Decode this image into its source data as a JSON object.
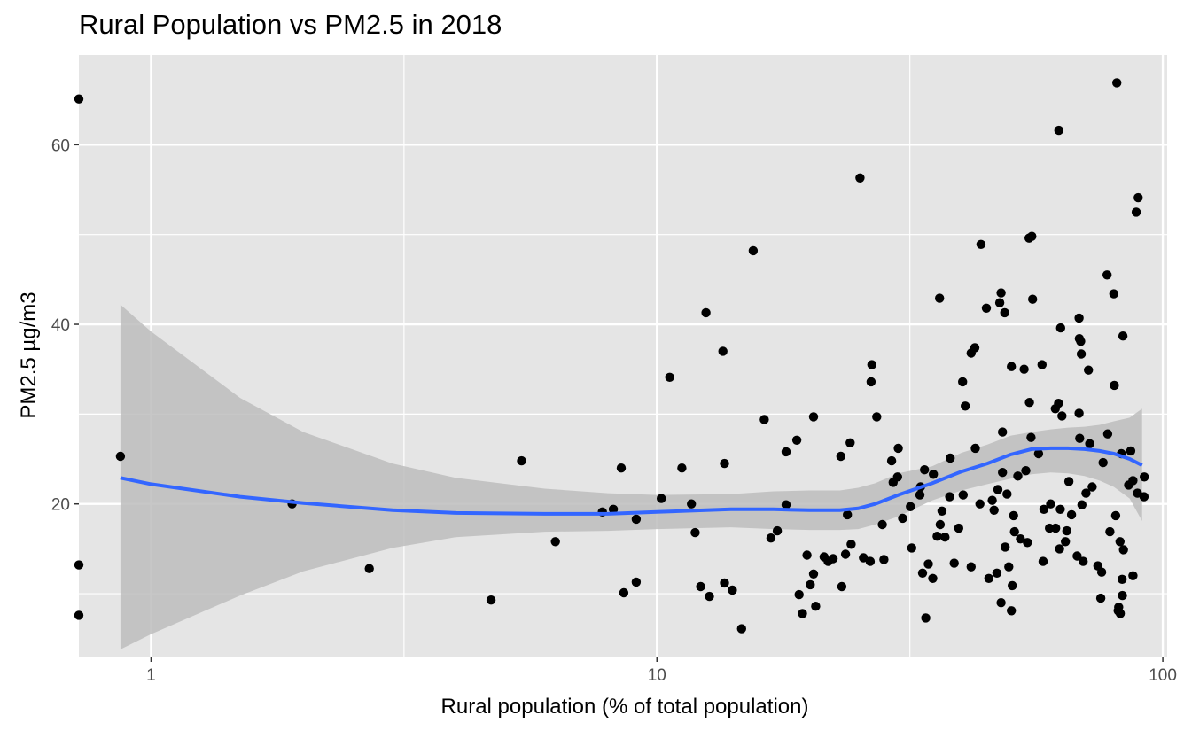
{
  "chart_data": {
    "type": "scatter",
    "title": "Rural Population vs PM2.5 in 2018",
    "xlabel": "Rural population (% of total population)",
    "ylabel": "PM2.5 µg/m3",
    "x_scale": "log10",
    "xlim": [
      0.72,
      102
    ],
    "ylim": [
      3,
      70
    ],
    "x_ticks": [
      1,
      10,
      100
    ],
    "x_tick_labels": [
      "1",
      "10",
      "100"
    ],
    "y_ticks": [
      20,
      40,
      60
    ],
    "y_tick_labels": [
      "20",
      "40",
      "60"
    ],
    "grid": true,
    "colors": {
      "points": "#000000",
      "smooth_line": "#3366FF",
      "ribbon": "#bdbdbd",
      "panel": "#e5e5e5",
      "grid": "#ffffff"
    },
    "points": [
      [
        0.72,
        65.1
      ],
      [
        0.72,
        13.2
      ],
      [
        0.72,
        7.6
      ],
      [
        0.87,
        25.3
      ],
      [
        1.9,
        20.0
      ],
      [
        2.7,
        12.8
      ],
      [
        4.7,
        9.3
      ],
      [
        5.4,
        24.8
      ],
      [
        6.3,
        15.8
      ],
      [
        7.8,
        19.1
      ],
      [
        8.2,
        19.4
      ],
      [
        8.5,
        24.0
      ],
      [
        8.6,
        10.1
      ],
      [
        9.1,
        11.3
      ],
      [
        9.1,
        18.3
      ],
      [
        10.2,
        20.6
      ],
      [
        10.6,
        34.1
      ],
      [
        11.2,
        24.0
      ],
      [
        11.7,
        20.0
      ],
      [
        11.9,
        16.8
      ],
      [
        12.2,
        10.8
      ],
      [
        12.5,
        41.3
      ],
      [
        12.7,
        9.7
      ],
      [
        13.5,
        37.0
      ],
      [
        13.6,
        24.5
      ],
      [
        13.6,
        11.2
      ],
      [
        14.1,
        10.4
      ],
      [
        14.7,
        6.1
      ],
      [
        15.5,
        48.2
      ],
      [
        16.3,
        29.4
      ],
      [
        16.8,
        16.2
      ],
      [
        17.3,
        17.0
      ],
      [
        18.0,
        19.9
      ],
      [
        18.0,
        25.8
      ],
      [
        18.9,
        27.1
      ],
      [
        19.1,
        9.9
      ],
      [
        19.4,
        7.8
      ],
      [
        19.8,
        14.3
      ],
      [
        20.1,
        11.0
      ],
      [
        20.4,
        12.2
      ],
      [
        20.6,
        8.6
      ],
      [
        20.4,
        29.7
      ],
      [
        21.4,
        14.1
      ],
      [
        21.8,
        13.6
      ],
      [
        22.3,
        13.9
      ],
      [
        23.1,
        25.3
      ],
      [
        23.2,
        10.8
      ],
      [
        23.6,
        14.4
      ],
      [
        23.8,
        18.8
      ],
      [
        24.1,
        26.8
      ],
      [
        24.2,
        15.5
      ],
      [
        25.2,
        56.3
      ],
      [
        25.6,
        14.0
      ],
      [
        26.4,
        13.6
      ],
      [
        26.6,
        35.5
      ],
      [
        26.5,
        33.6
      ],
      [
        27.2,
        29.7
      ],
      [
        27.9,
        17.7
      ],
      [
        28.1,
        13.8
      ],
      [
        29.1,
        24.8
      ],
      [
        29.3,
        22.4
      ],
      [
        29.9,
        23.0
      ],
      [
        30.0,
        26.2
      ],
      [
        30.6,
        18.4
      ],
      [
        31.7,
        19.7
      ],
      [
        31.9,
        15.1
      ],
      [
        33.1,
        21.0
      ],
      [
        33.2,
        21.9
      ],
      [
        33.5,
        12.3
      ],
      [
        33.8,
        23.8
      ],
      [
        34.0,
        7.3
      ],
      [
        34.4,
        13.3
      ],
      [
        35.1,
        11.7
      ],
      [
        35.2,
        23.3
      ],
      [
        35.8,
        16.4
      ],
      [
        36.2,
        42.9
      ],
      [
        36.3,
        17.7
      ],
      [
        36.6,
        19.2
      ],
      [
        37.1,
        16.3
      ],
      [
        37.9,
        20.8
      ],
      [
        38.0,
        25.1
      ],
      [
        38.7,
        13.4
      ],
      [
        39.5,
        17.3
      ],
      [
        40.2,
        33.6
      ],
      [
        40.3,
        21.0
      ],
      [
        40.7,
        30.9
      ],
      [
        41.8,
        36.8
      ],
      [
        41.8,
        13.0
      ],
      [
        42.5,
        37.4
      ],
      [
        42.6,
        26.2
      ],
      [
        43.5,
        20.0
      ],
      [
        43.7,
        48.9
      ],
      [
        44.8,
        41.8
      ],
      [
        45.3,
        11.7
      ],
      [
        46.0,
        20.4
      ],
      [
        46.4,
        19.3
      ],
      [
        47.0,
        12.3
      ],
      [
        47.2,
        21.6
      ],
      [
        47.6,
        42.4
      ],
      [
        47.9,
        43.5
      ],
      [
        47.9,
        9.0
      ],
      [
        48.2,
        28.0
      ],
      [
        48.2,
        23.5
      ],
      [
        48.7,
        41.3
      ],
      [
        48.8,
        15.2
      ],
      [
        49.2,
        21.1
      ],
      [
        49.6,
        13.0
      ],
      [
        50.2,
        35.3
      ],
      [
        50.2,
        8.1
      ],
      [
        50.4,
        10.9
      ],
      [
        50.7,
        18.7
      ],
      [
        50.9,
        16.9
      ],
      [
        51.7,
        23.1
      ],
      [
        52.3,
        16.1
      ],
      [
        53.2,
        35.0
      ],
      [
        53.6,
        23.7
      ],
      [
        54.0,
        15.7
      ],
      [
        54.4,
        49.6
      ],
      [
        54.5,
        31.3
      ],
      [
        54.9,
        27.4
      ],
      [
        55.1,
        49.8
      ],
      [
        55.3,
        42.8
      ],
      [
        56.8,
        25.6
      ],
      [
        57.7,
        35.5
      ],
      [
        58.0,
        13.6
      ],
      [
        58.2,
        19.4
      ],
      [
        59.7,
        17.3
      ],
      [
        60.0,
        20.0
      ],
      [
        61.3,
        30.6
      ],
      [
        61.4,
        17.3
      ],
      [
        62.2,
        31.2
      ],
      [
        62.3,
        61.6
      ],
      [
        62.5,
        15.0
      ],
      [
        62.7,
        19.4
      ],
      [
        62.8,
        39.6
      ],
      [
        63.2,
        29.8
      ],
      [
        64.2,
        15.8
      ],
      [
        64.6,
        17.0
      ],
      [
        65.2,
        22.5
      ],
      [
        66.0,
        18.8
      ],
      [
        67.7,
        14.2
      ],
      [
        68.3,
        30.1
      ],
      [
        68.3,
        40.7
      ],
      [
        68.4,
        38.4
      ],
      [
        68.5,
        27.3
      ],
      [
        68.8,
        38.1
      ],
      [
        69.0,
        36.7
      ],
      [
        69.2,
        19.9
      ],
      [
        69.6,
        13.6
      ],
      [
        70.5,
        21.2
      ],
      [
        71.3,
        34.9
      ],
      [
        71.7,
        26.7
      ],
      [
        72.5,
        21.9
      ],
      [
        74.4,
        13.1
      ],
      [
        75.4,
        9.5
      ],
      [
        75.7,
        12.4
      ],
      [
        76.2,
        24.6
      ],
      [
        77.6,
        45.5
      ],
      [
        77.8,
        27.8
      ],
      [
        78.6,
        16.9
      ],
      [
        80.0,
        43.4
      ],
      [
        80.2,
        33.2
      ],
      [
        80.7,
        18.7
      ],
      [
        81.1,
        66.9
      ],
      [
        81.6,
        8.1
      ],
      [
        81.8,
        8.5
      ],
      [
        82.3,
        15.8
      ],
      [
        82.4,
        7.8
      ],
      [
        82.8,
        25.6
      ],
      [
        83.1,
        11.6
      ],
      [
        83.2,
        9.8
      ],
      [
        83.4,
        38.7
      ],
      [
        83.6,
        14.9
      ],
      [
        85.6,
        22.1
      ],
      [
        86.4,
        25.9
      ],
      [
        87.3,
        22.6
      ],
      [
        87.3,
        12.0
      ],
      [
        88.6,
        52.5
      ],
      [
        89.1,
        21.2
      ],
      [
        89.4,
        54.1
      ],
      [
        91.8,
        20.8
      ],
      [
        91.9,
        23.0
      ]
    ],
    "smooth": {
      "x": [
        0.87,
        1,
        1.5,
        2,
        3,
        4,
        6,
        8,
        10,
        14,
        17,
        20,
        23,
        25,
        27,
        30,
        35,
        40,
        45,
        50,
        55,
        60,
        65,
        70,
        75,
        80,
        86,
        91
      ],
      "y": [
        22.9,
        22.2,
        20.8,
        20.1,
        19.3,
        19.0,
        18.9,
        18.9,
        19.1,
        19.4,
        19.4,
        19.3,
        19.3,
        19.5,
        20.0,
        21.0,
        22.3,
        23.6,
        24.5,
        25.5,
        26.1,
        26.2,
        26.2,
        26.1,
        25.9,
        25.6,
        25.0,
        24.3
      ],
      "lower": [
        3.8,
        5.5,
        9.8,
        12.5,
        15.1,
        16.3,
        16.9,
        17.0,
        17.2,
        17.4,
        17.2,
        17.1,
        17.1,
        17.2,
        17.7,
        18.6,
        20.4,
        21.5,
        22.2,
        22.8,
        23.3,
        23.5,
        23.4,
        23.1,
        22.6,
        21.9,
        20.6,
        18.1
      ],
      "upper": [
        42.2,
        39.2,
        31.8,
        28.0,
        24.5,
        22.9,
        21.7,
        21.2,
        21.0,
        21.1,
        21.4,
        21.5,
        21.5,
        21.8,
        22.3,
        23.4,
        24.2,
        25.7,
        26.6,
        27.6,
        28.0,
        28.3,
        28.5,
        28.6,
        28.8,
        29.2,
        29.6,
        30.6
      ]
    }
  }
}
